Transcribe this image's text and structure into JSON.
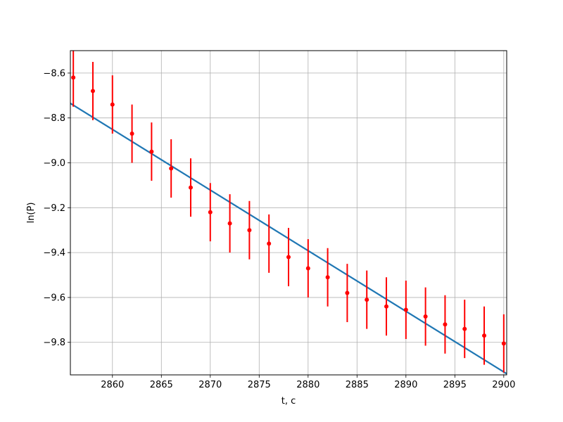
{
  "chart_data": {
    "type": "scatter",
    "title": "",
    "xlabel": "t, c",
    "ylabel": "ln(P)",
    "xlim": [
      2855.7,
      2900.3
    ],
    "ylim": [
      -9.945,
      -8.5
    ],
    "grid": true,
    "xticks": [
      2860,
      2865,
      2870,
      2875,
      2880,
      2885,
      2890,
      2895,
      2900
    ],
    "yticks": [
      -8.6,
      -8.8,
      -9.0,
      -9.2,
      -9.4,
      -9.6,
      -9.8
    ],
    "xtick_labels": [
      "2860",
      "2865",
      "2870",
      "2875",
      "2880",
      "2885",
      "2890",
      "2895",
      "2900"
    ],
    "ytick_labels": [
      "−8.6",
      "−8.8",
      "−9.0",
      "−9.2",
      "−9.4",
      "−9.6",
      "−9.8"
    ],
    "series": [
      {
        "kind": "errorbar",
        "color": "#ff0000",
        "x": [
          2856,
          2858,
          2860,
          2862,
          2864,
          2866,
          2868,
          2870,
          2872,
          2874,
          2876,
          2878,
          2880,
          2882,
          2884,
          2886,
          2888,
          2890,
          2892,
          2894,
          2896,
          2898,
          2900
        ],
        "y": [
          -8.62,
          -8.68,
          -8.74,
          -8.87,
          -8.95,
          -9.025,
          -9.11,
          -9.22,
          -9.27,
          -9.3,
          -9.36,
          -9.42,
          -9.47,
          -9.51,
          -9.58,
          -9.61,
          -9.64,
          -9.655,
          -9.685,
          -9.72,
          -9.74,
          -9.77,
          -9.805
        ],
        "yerr": [
          0.13,
          0.13,
          0.13,
          0.13,
          0.13,
          0.13,
          0.13,
          0.13,
          0.13,
          0.13,
          0.13,
          0.13,
          0.13,
          0.13,
          0.13,
          0.13,
          0.13,
          0.13,
          0.13,
          0.13,
          0.13,
          0.13,
          0.13
        ]
      },
      {
        "kind": "line",
        "color": "#1f77b4",
        "x": [
          2855.7,
          2900.3
        ],
        "y": [
          -8.735,
          -9.94
        ]
      }
    ]
  }
}
